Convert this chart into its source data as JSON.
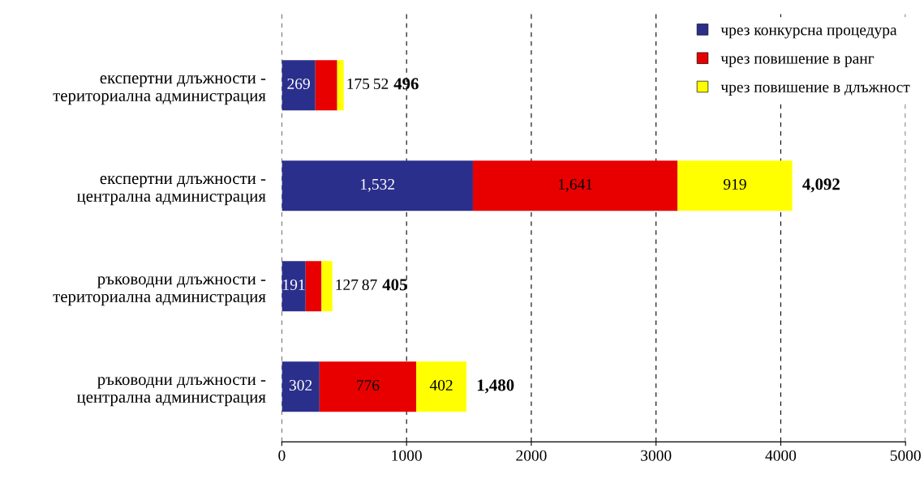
{
  "chart_data": {
    "type": "bar",
    "orientation": "horizontal",
    "stacked": true,
    "categories": [
      "експертни длъжности -\nтериториална администрация",
      "експертни длъжности -\nцентрална администрация",
      "ръководни длъжности -\nтериториална администрация",
      "ръководни длъжности -\nцентрална администрация"
    ],
    "series": [
      {
        "name": "чрез конкурсна процедура",
        "color": "#2b2f8c",
        "values": [
          269,
          1532,
          191,
          302
        ],
        "value_labels": [
          "269",
          "1,532",
          "191",
          "302"
        ]
      },
      {
        "name": "чрез повишение в ранг",
        "color": "#e80000",
        "values": [
          175,
          1641,
          127,
          776
        ],
        "value_labels": [
          "175",
          "1,641",
          "127",
          "776"
        ]
      },
      {
        "name": "чрез повишение в длъжност",
        "color": "#ffff00",
        "values": [
          52,
          919,
          87,
          402
        ],
        "value_labels": [
          "52",
          "919",
          "87",
          "402"
        ]
      }
    ],
    "totals": [
      "496",
      "4,092",
      "405",
      "1,480"
    ],
    "xlim": [
      0,
      5000
    ],
    "xticks": [
      0,
      1000,
      2000,
      3000,
      4000,
      5000
    ],
    "grid": "x",
    "legend": "top right"
  }
}
